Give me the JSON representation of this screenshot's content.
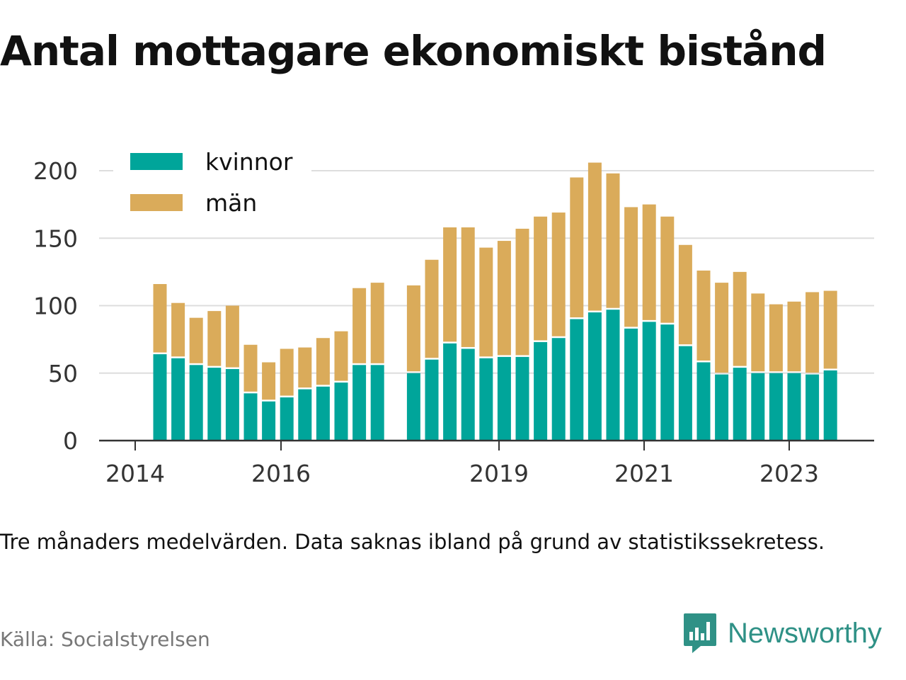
{
  "title": "Antal mottagare ekonomiskt bistånd",
  "note": "Tre månaders medelvärden. Data saknas ibland på grund av statistikssekretess.",
  "source": "Källa: Socialstyrelsen",
  "brand": {
    "name": "Newsworthy",
    "icon": "newsworthy-logo-icon",
    "color": "#2f9186"
  },
  "colors": {
    "kvinnor": "#00a59a",
    "man": "#daab5a",
    "grid": "#dddddd",
    "axis": "#333333"
  },
  "chart_data": {
    "type": "bar",
    "stacked": true,
    "x_tick_labels": [
      "2014",
      "2016",
      "2019",
      "2021",
      "2023"
    ],
    "y_ticks": [
      0,
      50,
      100,
      150,
      200
    ],
    "ylim": [
      0,
      210
    ],
    "grid": true,
    "legend_position": "top-left",
    "categories": [
      "2014-Q2",
      "2014-Q3",
      "2014-Q4",
      "2015-Q1",
      "2015-Q2",
      "2015-Q3",
      "2015-Q4",
      "2016-Q1",
      "2016-Q2",
      "2016-Q3",
      "2016-Q4",
      "2017-Q1",
      "2017-Q2",
      "2017-Q3",
      "2017-Q4",
      "2018-Q1",
      "2018-Q2",
      "2018-Q3",
      "2018-Q4",
      "2019-Q1",
      "2019-Q2",
      "2019-Q3",
      "2019-Q4",
      "2020-Q1",
      "2020-Q2",
      "2020-Q3",
      "2020-Q4",
      "2021-Q1",
      "2021-Q2",
      "2021-Q3",
      "2021-Q4",
      "2022-Q1",
      "2022-Q2",
      "2022-Q3",
      "2022-Q4",
      "2023-Q1",
      "2023-Q2",
      "2023-Q3",
      "2023-Q4"
    ],
    "series": [
      {
        "name": "kvinnor",
        "values": [
          64,
          61,
          56,
          54,
          53,
          35,
          29,
          32,
          38,
          40,
          43,
          56,
          56,
          null,
          50,
          60,
          72,
          68,
          61,
          62,
          62,
          73,
          76,
          90,
          95,
          97,
          83,
          88,
          86,
          70,
          58,
          49,
          54,
          50,
          50,
          50,
          49,
          52,
          null
        ]
      },
      {
        "name": "män",
        "values": [
          52,
          41,
          35,
          42,
          47,
          36,
          29,
          36,
          31,
          36,
          38,
          57,
          61,
          null,
          65,
          74,
          86,
          90,
          82,
          86,
          95,
          93,
          93,
          105,
          111,
          101,
          90,
          87,
          80,
          75,
          68,
          68,
          71,
          59,
          51,
          53,
          61,
          59,
          null
        ]
      }
    ]
  }
}
